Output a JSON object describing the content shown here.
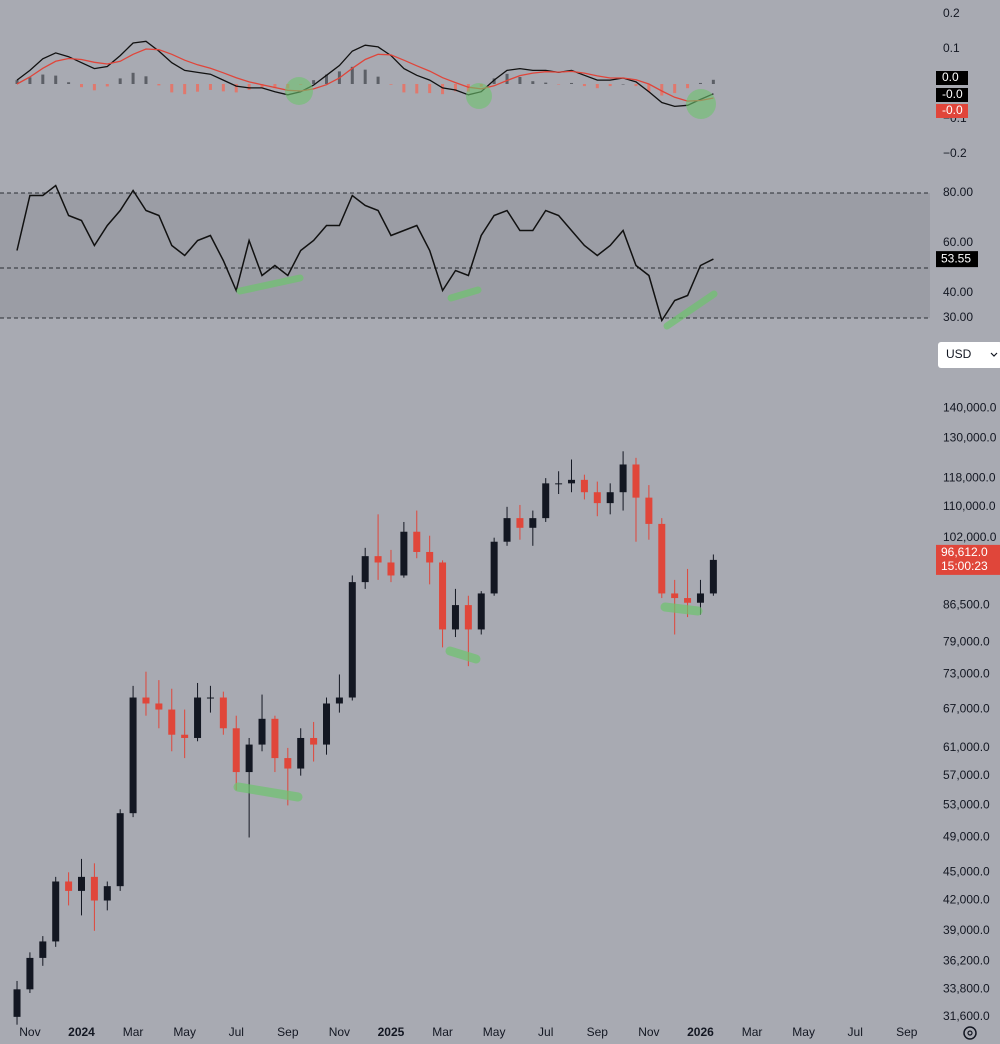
{
  "chart_data": [
    {
      "type": "macd",
      "x": [
        -0.5,
        0,
        0.5,
        1,
        1.5,
        2,
        2.5,
        3,
        3.5,
        4,
        4.5,
        5,
        5.5,
        6,
        6.5,
        7,
        7.5,
        8,
        8.5,
        9,
        9.5,
        10,
        10.5,
        11,
        11.5,
        12,
        12.5,
        13,
        13.5,
        14,
        14.5,
        15,
        15.5,
        16,
        16.5,
        17,
        17.5,
        18,
        18.5,
        19,
        19.5,
        20,
        20.5,
        21,
        21.5,
        22,
        22.5,
        23,
        23.5,
        24,
        24.5,
        25,
        25.5,
        26,
        26.5
      ],
      "xlim": [
        -1.16,
        34.9
      ],
      "ylim": [
        -0.24,
        0.24
      ],
      "yticks": [
        0.2,
        0.1,
        {
          "value": -0.1,
          "label": "−0.1"
        },
        {
          "value": -0.2,
          "label": "−0.2"
        }
      ],
      "series": [
        {
          "kind": "histogram",
          "up_color": "#5c5f66",
          "down_color": "#e0786d",
          "badge_color": "#000000",
          "last_label": "0.0",
          "values": [
            0.011,
            0.019,
            0.027,
            0.024,
            0.005,
            -0.009,
            -0.018,
            -0.007,
            0.016,
            0.032,
            0.022,
            -0.004,
            -0.024,
            -0.029,
            -0.022,
            -0.017,
            -0.021,
            -0.024,
            -0.017,
            -0.009,
            -0.012,
            -0.013,
            -0.002,
            0.011,
            0.027,
            0.036,
            0.049,
            0.041,
            0.021,
            -0.002,
            -0.024,
            -0.027,
            -0.026,
            -0.029,
            -0.021,
            -0.022,
            -0.008,
            0.016,
            0.029,
            0.02,
            0.008,
            0.004,
            -0.001,
            0.003,
            -0.006,
            -0.012,
            -0.006,
            0.0,
            -0.006,
            -0.022,
            -0.033,
            -0.026,
            -0.012,
            0.003,
            0.012
          ]
        },
        {
          "kind": "line",
          "color": "#111111",
          "badge_color": "#000000",
          "last_label": "-0.0",
          "values": [
            0.011,
            0.039,
            0.072,
            0.089,
            0.078,
            0.061,
            0.044,
            0.05,
            0.081,
            0.117,
            0.122,
            0.094,
            0.061,
            0.039,
            0.033,
            0.028,
            0.011,
            -0.006,
            -0.011,
            -0.011,
            -0.022,
            -0.031,
            -0.022,
            -0.003,
            0.025,
            0.053,
            0.094,
            0.111,
            0.106,
            0.081,
            0.044,
            0.025,
            0.011,
            -0.011,
            -0.017,
            -0.031,
            -0.022,
            0.011,
            0.039,
            0.044,
            0.039,
            0.039,
            0.033,
            0.039,
            0.025,
            0.011,
            0.011,
            0.017,
            0.006,
            -0.022,
            -0.053,
            -0.064,
            -0.061,
            -0.044,
            -0.028
          ]
        },
        {
          "kind": "line",
          "color": "#e0453a",
          "badge_color": "#e0453a",
          "last_label": "-0.0",
          "values": [
            0.0,
            0.02,
            0.045,
            0.065,
            0.073,
            0.07,
            0.062,
            0.057,
            0.065,
            0.085,
            0.1,
            0.098,
            0.085,
            0.068,
            0.055,
            0.045,
            0.032,
            0.018,
            0.006,
            -0.002,
            -0.01,
            -0.018,
            -0.02,
            -0.014,
            -0.002,
            0.017,
            0.045,
            0.07,
            0.085,
            0.083,
            0.068,
            0.052,
            0.037,
            0.018,
            0.004,
            -0.009,
            -0.014,
            -0.005,
            0.01,
            0.024,
            0.031,
            0.035,
            0.034,
            0.036,
            0.031,
            0.023,
            0.017,
            0.017,
            0.012,
            0.0,
            -0.02,
            -0.038,
            -0.049,
            -0.047,
            -0.04
          ]
        }
      ]
    },
    {
      "type": "line",
      "x": [
        -0.5,
        0,
        0.5,
        1,
        1.5,
        2,
        2.5,
        3,
        3.5,
        4,
        4.5,
        5,
        5.5,
        6,
        6.5,
        7,
        7.5,
        8,
        8.5,
        9,
        9.5,
        10,
        10.5,
        11,
        11.5,
        12,
        12.5,
        13,
        13.5,
        14,
        14.5,
        15,
        15.5,
        16,
        16.5,
        17,
        17.5,
        18,
        18.5,
        19,
        19.5,
        20,
        20.5,
        21,
        21.5,
        22,
        22.5,
        23,
        23.5,
        24,
        24.5,
        25,
        25.5,
        26,
        26.5
      ],
      "xlim": [
        -1.16,
        34.9
      ],
      "ylim": [
        25.2,
        85.2
      ],
      "yticks": [
        {
          "value": 80,
          "label": "80.00"
        },
        {
          "value": 60,
          "label": "60.00"
        },
        {
          "value": 40,
          "label": "40.00"
        },
        {
          "value": 30,
          "label": "30.00"
        }
      ],
      "band": [
        30,
        80
      ],
      "band_color": "#9b9da5",
      "levels": [
        30,
        50,
        80
      ],
      "color": "#111111",
      "badge_color": "#000000",
      "values": [
        57,
        79,
        79,
        83,
        71,
        69,
        59,
        67,
        73,
        81,
        73,
        71,
        59,
        55,
        61,
        63,
        53,
        41,
        61,
        47,
        51,
        47,
        57,
        61,
        67,
        67,
        79,
        75,
        73,
        63,
        65,
        67,
        57,
        41,
        49,
        47,
        63,
        71,
        73,
        65,
        65,
        73,
        71,
        65,
        59,
        55,
        59,
        65,
        51,
        47,
        29,
        37,
        39,
        51,
        53.55
      ]
    },
    {
      "type": "candlestick",
      "log_scale": true,
      "x": [
        -0.5,
        0,
        0.5,
        1,
        1.5,
        2,
        2.5,
        3,
        3.5,
        4,
        4.5,
        5,
        5.5,
        6,
        6.5,
        7,
        7.5,
        8,
        8.5,
        9,
        9.5,
        10,
        10.5,
        11,
        11.5,
        12,
        12.5,
        13,
        13.5,
        14,
        14.5,
        15,
        15.5,
        16,
        16.5,
        17,
        17.5,
        18,
        18.5,
        19,
        19.5,
        20,
        20.5,
        21,
        21.5,
        22,
        22.5,
        23,
        23.5,
        24,
        24.5,
        25,
        25.5,
        26,
        26.5
      ],
      "xlim": [
        -1.16,
        34.9
      ],
      "xticks": [
        {
          "value": 0,
          "label": "Nov"
        },
        {
          "value": 2,
          "label": "2024"
        },
        {
          "value": 4,
          "label": "Mar"
        },
        {
          "value": 6,
          "label": "May"
        },
        {
          "value": 8,
          "label": "Jul"
        },
        {
          "value": 10,
          "label": "Sep"
        },
        {
          "value": 12,
          "label": "Nov"
        },
        {
          "value": 14,
          "label": "2025"
        },
        {
          "value": 16,
          "label": "Mar"
        },
        {
          "value": 18,
          "label": "May"
        },
        {
          "value": 20,
          "label": "Jul"
        },
        {
          "value": 22,
          "label": "Sep"
        },
        {
          "value": 24,
          "label": "Nov"
        },
        {
          "value": 26,
          "label": "2026"
        },
        {
          "value": 28,
          "label": "Mar"
        },
        {
          "value": 30,
          "label": "May"
        },
        {
          "value": 32,
          "label": "Jul"
        },
        {
          "value": 34,
          "label": "Sep"
        }
      ],
      "ylim": [
        30600,
        150000
      ],
      "yticks": [
        {
          "value": 140000,
          "label": "140,000.0"
        },
        {
          "value": 130000,
          "label": "130,000.0"
        },
        {
          "value": 118000,
          "label": "118,000.0"
        },
        {
          "value": 110000,
          "label": "110,000.0"
        },
        {
          "value": 102000,
          "label": "102,000.0"
        },
        {
          "value": 86500,
          "label": "86,500.0"
        },
        {
          "value": 79000,
          "label": "79,000.0"
        },
        {
          "value": 73000,
          "label": "73,000.0"
        },
        {
          "value": 67000,
          "label": "67,000.0"
        },
        {
          "value": 61000,
          "label": "61,000.0"
        },
        {
          "value": 57000,
          "label": "57,000.0"
        },
        {
          "value": 53000,
          "label": "53,000.0"
        },
        {
          "value": 49000,
          "label": "49,000.0"
        },
        {
          "value": 45000,
          "label": "45,000.0"
        },
        {
          "value": 42000,
          "label": "42,000.0"
        },
        {
          "value": 39000,
          "label": "39,000.0"
        },
        {
          "value": 36200,
          "label": "36,200.0"
        },
        {
          "value": 33800,
          "label": "33,800.0"
        },
        {
          "value": 31600,
          "label": "31,600.0"
        }
      ],
      "up_color": "#131722",
      "down_color": "#e0463a",
      "last_label": "96,612.0",
      "timer": "15:00:23",
      "open": [
        31600,
        33800,
        36500,
        38000,
        44000,
        43000,
        44500,
        42000,
        43500,
        52000,
        69000,
        68000,
        67000,
        63000,
        62500,
        69000,
        69000,
        64000,
        57500,
        61500,
        65500,
        59500,
        58000,
        62500,
        61500,
        68000,
        69000,
        91500,
        97500,
        96000,
        93000,
        103500,
        98500,
        96000,
        81500,
        86500,
        81500,
        89000,
        101000,
        107000,
        104500,
        107000,
        116500,
        116500,
        117500,
        114000,
        111000,
        114000,
        122000,
        112500,
        105500,
        89000,
        88000,
        87000,
        89000
      ],
      "high": [
        34500,
        37000,
        38500,
        44500,
        45000,
        46500,
        46000,
        44000,
        52500,
        71000,
        73500,
        72000,
        70500,
        67000,
        71500,
        71000,
        70000,
        66000,
        62500,
        69500,
        66000,
        61000,
        64000,
        65000,
        69000,
        73000,
        93000,
        99500,
        108000,
        99000,
        106000,
        109000,
        102500,
        96500,
        90000,
        88500,
        89500,
        102000,
        110000,
        110500,
        109000,
        118000,
        120000,
        123500,
        119000,
        117000,
        116500,
        126000,
        124000,
        116000,
        107000,
        92000,
        94500,
        92000,
        97900
      ],
      "low": [
        31000,
        33500,
        35800,
        37500,
        41500,
        40500,
        39000,
        41000,
        43000,
        51500,
        66000,
        64000,
        60500,
        59500,
        62000,
        66500,
        63000,
        55000,
        49000,
        60500,
        57500,
        53000,
        57000,
        59000,
        60000,
        66500,
        68500,
        90000,
        92000,
        91500,
        92500,
        97000,
        91000,
        78000,
        80000,
        74500,
        80500,
        88500,
        100000,
        101500,
        100000,
        106000,
        113500,
        114000,
        112000,
        107500,
        108000,
        109000,
        101000,
        101500,
        88000,
        80500,
        84000,
        84500,
        88500
      ],
      "close": [
        33800,
        36500,
        38000,
        44000,
        43000,
        44500,
        42000,
        43500,
        52000,
        69000,
        68000,
        67000,
        63000,
        62500,
        69000,
        69000,
        64000,
        57500,
        61500,
        65500,
        59500,
        58000,
        62500,
        61500,
        68000,
        69000,
        91500,
        97500,
        96000,
        93000,
        103500,
        98500,
        96000,
        81500,
        86500,
        81500,
        89000,
        101000,
        107000,
        104500,
        107000,
        116500,
        116500,
        117500,
        114000,
        111000,
        114000,
        122000,
        112500,
        105500,
        89000,
        88000,
        87000,
        89000,
        96612
      ]
    }
  ],
  "currency_selector": "USD"
}
